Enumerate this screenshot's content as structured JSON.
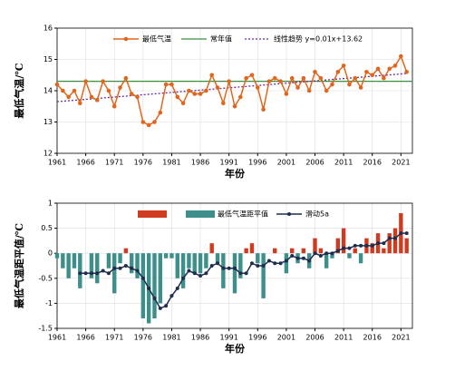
{
  "chart_data": [
    {
      "type": "line",
      "xlabel": "年份",
      "ylabel": "最低气温/℃",
      "x": [
        1961,
        1962,
        1963,
        1964,
        1965,
        1966,
        1967,
        1968,
        1969,
        1970,
        1971,
        1972,
        1973,
        1974,
        1975,
        1976,
        1977,
        1978,
        1979,
        1980,
        1981,
        1982,
        1983,
        1984,
        1985,
        1986,
        1987,
        1988,
        1989,
        1990,
        1991,
        1992,
        1993,
        1994,
        1995,
        1996,
        1997,
        1998,
        1999,
        2000,
        2001,
        2002,
        2003,
        2004,
        2005,
        2006,
        2007,
        2008,
        2009,
        2010,
        2011,
        2012,
        2013,
        2014,
        2015,
        2016,
        2017,
        2018,
        2019,
        2020,
        2021,
        2022
      ],
      "series": [
        {
          "name": "最低气温",
          "color": "#e0661c",
          "values": [
            14.2,
            14.0,
            13.8,
            14.0,
            13.6,
            14.3,
            13.8,
            13.7,
            14.3,
            14.0,
            13.5,
            14.1,
            14.4,
            13.9,
            13.8,
            13.0,
            12.9,
            13.0,
            13.3,
            14.2,
            14.2,
            13.8,
            13.6,
            14.0,
            13.9,
            13.9,
            14.0,
            14.5,
            14.1,
            13.6,
            14.3,
            13.5,
            13.8,
            14.4,
            14.5,
            14.1,
            13.4,
            14.3,
            14.4,
            14.3,
            13.9,
            14.4,
            14.1,
            14.4,
            14.0,
            14.6,
            14.4,
            14.0,
            14.2,
            14.6,
            14.8,
            14.2,
            14.4,
            14.1,
            14.6,
            14.5,
            14.7,
            14.4,
            14.7,
            14.8,
            15.1,
            14.6
          ]
        }
      ],
      "reference": {
        "name": "常年值",
        "color": "#3f8f3f",
        "value": 14.3
      },
      "trend": {
        "name": "线性趋势 y=0.01x+13.62",
        "color": "#6a2a9a",
        "x": [
          1961,
          2022
        ],
        "values": [
          13.65,
          14.55
        ]
      },
      "xlim": [
        1961,
        2023
      ],
      "xticks": [
        1961,
        1966,
        1971,
        1976,
        1981,
        1986,
        1991,
        1996,
        2001,
        2006,
        2011,
        2016,
        2021
      ],
      "ylim": [
        12,
        16
      ],
      "yticks": [
        12,
        13,
        14,
        15,
        16
      ],
      "grid": true
    },
    {
      "type": "bar",
      "xlabel": "年份",
      "ylabel": "最低气温距平值/℃",
      "x": [
        1961,
        1962,
        1963,
        1964,
        1965,
        1966,
        1967,
        1968,
        1969,
        1970,
        1971,
        1972,
        1973,
        1974,
        1975,
        1976,
        1977,
        1978,
        1979,
        1980,
        1981,
        1982,
        1983,
        1984,
        1985,
        1986,
        1987,
        1988,
        1989,
        1990,
        1991,
        1992,
        1993,
        1994,
        1995,
        1996,
        1997,
        1998,
        1999,
        2000,
        2001,
        2002,
        2003,
        2004,
        2005,
        2006,
        2007,
        2008,
        2009,
        2010,
        2011,
        2012,
        2013,
        2014,
        2015,
        2016,
        2017,
        2018,
        2019,
        2020,
        2021,
        2022
      ],
      "series": [
        {
          "name": "最低气温距平值",
          "color": "#3c8f8a",
          "positive_color": "#d03a1f",
          "values": [
            -0.1,
            -0.3,
            -0.5,
            -0.3,
            -0.7,
            0,
            -0.5,
            -0.6,
            0,
            -0.3,
            -0.8,
            -0.2,
            0.1,
            -0.4,
            -0.5,
            -1.3,
            -1.4,
            -1.3,
            -1.0,
            -0.1,
            -0.1,
            -0.5,
            -0.7,
            -0.3,
            -0.4,
            -0.4,
            -0.3,
            0.2,
            -0.2,
            -0.7,
            0,
            -0.8,
            -0.5,
            0.1,
            0.2,
            -0.2,
            -0.9,
            0,
            0.1,
            0,
            -0.4,
            0.1,
            -0.2,
            0.1,
            -0.3,
            0.3,
            0.1,
            -0.3,
            -0.1,
            0.3,
            0.5,
            -0.1,
            0.1,
            -0.2,
            0.3,
            0.2,
            0.4,
            0.1,
            0.4,
            0.5,
            0.8,
            0.3
          ]
        },
        {
          "name": "滑动5a",
          "color": "#1f2d4f",
          "values": [
            null,
            null,
            null,
            null,
            -0.4,
            -0.4,
            -0.4,
            -0.4,
            -0.35,
            -0.4,
            -0.3,
            -0.3,
            -0.25,
            -0.3,
            -0.35,
            -0.5,
            -0.7,
            -0.9,
            -1.1,
            -1.05,
            -0.85,
            -0.7,
            -0.5,
            -0.35,
            -0.4,
            -0.45,
            -0.4,
            -0.25,
            -0.2,
            -0.3,
            -0.3,
            -0.3,
            -0.4,
            -0.4,
            -0.2,
            -0.25,
            -0.25,
            -0.15,
            -0.2,
            -0.2,
            -0.15,
            -0.05,
            -0.1,
            -0.1,
            -0.15,
            0,
            -0.05,
            0,
            0,
            0.05,
            0.1,
            0.1,
            0.15,
            0.15,
            0.15,
            0.15,
            0.2,
            0.2,
            0.3,
            0.3,
            0.4,
            0.4
          ]
        }
      ],
      "xlim": [
        1961,
        2023
      ],
      "xticks": [
        1961,
        1966,
        1971,
        1976,
        1981,
        1986,
        1991,
        1996,
        2001,
        2006,
        2011,
        2016,
        2021
      ],
      "ylim": [
        -1.5,
        1
      ],
      "yticks": [
        -1.5,
        -1,
        -0.5,
        0,
        0.5,
        1
      ],
      "grid": true
    }
  ]
}
